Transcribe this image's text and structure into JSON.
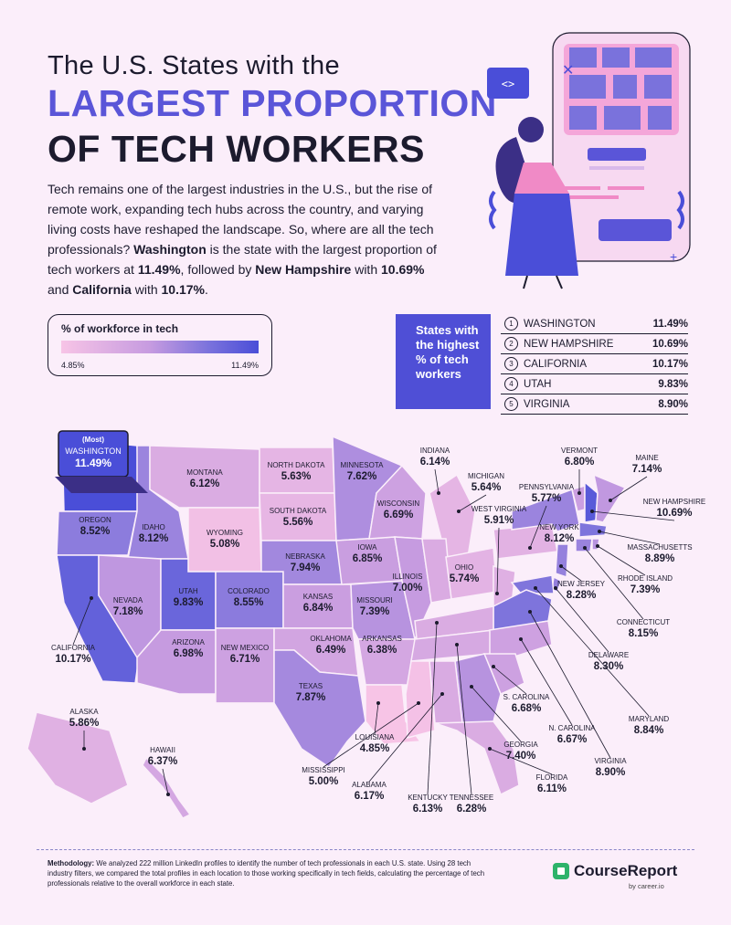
{
  "header": {
    "title_line1": "The U.S. States with the",
    "title_line2": "LARGEST PROPORTION",
    "title_line3": "OF TECH WORKERS"
  },
  "intro": {
    "p1": "Tech remains one of the largest industries in the U.S., but the rise of remote work, expanding tech hubs across the country, and varying living costs have reshaped the landscape. So, where are all the tech professionals?",
    "s1": "Washington",
    "p2": "is the state with the largest proportion of tech workers at",
    "v1": "11.49%",
    "p3": ", followed by",
    "s2": "New Hampshire",
    "p4": "with",
    "v2": "10.69%",
    "p5": "and",
    "s3": "California",
    "p6": "with",
    "v3": "10.17%",
    "p7": "."
  },
  "legend": {
    "title": "% of workforce in tech",
    "min": "4.85%",
    "max": "11.49%",
    "colors": [
      "#f7c4e6",
      "#c69be0",
      "#7a72dc",
      "#4a4ed8"
    ]
  },
  "top_states": {
    "heading": "States with the highest % of tech workers",
    "rows": [
      {
        "rank": "1",
        "state": "WASHINGTON",
        "value": "11.49%"
      },
      {
        "rank": "2",
        "state": "NEW HAMPSHIRE",
        "value": "10.69%"
      },
      {
        "rank": "3",
        "state": "CALIFORNIA",
        "value": "10.17%"
      },
      {
        "rank": "4",
        "state": "UTAH",
        "value": "9.83%"
      },
      {
        "rank": "5",
        "state": "VIRGINIA",
        "value": "8.90%"
      }
    ]
  },
  "map": {
    "callout_most": "(Most)",
    "states": [
      {
        "name": "WASHINGTON",
        "value": "11.49%"
      },
      {
        "name": "OREGON",
        "value": "8.52%"
      },
      {
        "name": "CALIFORNIA",
        "value": "10.17%"
      },
      {
        "name": "IDAHO",
        "value": "8.12%"
      },
      {
        "name": "NEVADA",
        "value": "7.18%"
      },
      {
        "name": "MONTANA",
        "value": "6.12%"
      },
      {
        "name": "WYOMING",
        "value": "5.08%"
      },
      {
        "name": "UTAH",
        "value": "9.83%"
      },
      {
        "name": "COLORADO",
        "value": "8.55%"
      },
      {
        "name": "ARIZONA",
        "value": "6.98%"
      },
      {
        "name": "NEW MEXICO",
        "value": "6.71%"
      },
      {
        "name": "NORTH DAKOTA",
        "value": "5.63%"
      },
      {
        "name": "SOUTH DAKOTA",
        "value": "5.56%"
      },
      {
        "name": "NEBRASKA",
        "value": "7.94%"
      },
      {
        "name": "KANSAS",
        "value": "6.84%"
      },
      {
        "name": "OKLAHOMA",
        "value": "6.49%"
      },
      {
        "name": "TEXAS",
        "value": "7.87%"
      },
      {
        "name": "MINNESOTA",
        "value": "7.62%"
      },
      {
        "name": "IOWA",
        "value": "6.85%"
      },
      {
        "name": "MISSOURI",
        "value": "7.39%"
      },
      {
        "name": "ARKANSAS",
        "value": "6.38%"
      },
      {
        "name": "LOUISIANA",
        "value": "4.85%"
      },
      {
        "name": "WISCONSIN",
        "value": "6.69%"
      },
      {
        "name": "ILLINOIS",
        "value": "7.00%"
      },
      {
        "name": "MICHIGAN",
        "value": "5.64%"
      },
      {
        "name": "INDIANA",
        "value": "6.14%"
      },
      {
        "name": "OHIO",
        "value": "5.74%"
      },
      {
        "name": "WEST VIRGINIA",
        "value": "5.91%"
      },
      {
        "name": "PENNSYLVANIA",
        "value": "5.77%"
      },
      {
        "name": "NEW YORK",
        "value": "8.12%"
      },
      {
        "name": "VERMONT",
        "value": "6.80%"
      },
      {
        "name": "MAINE",
        "value": "7.14%"
      },
      {
        "name": "NEW HAMPSHIRE",
        "value": "10.69%"
      },
      {
        "name": "MASSACHUSETTS",
        "value": "8.89%"
      },
      {
        "name": "RHODE ISLAND",
        "value": "7.39%"
      },
      {
        "name": "CONNECTICUT",
        "value": "8.15%"
      },
      {
        "name": "NEW JERSEY",
        "value": "8.28%"
      },
      {
        "name": "DELAWARE",
        "value": "8.30%"
      },
      {
        "name": "MARYLAND",
        "value": "8.84%"
      },
      {
        "name": "VIRGINIA",
        "value": "8.90%"
      },
      {
        "name": "N. CAROLINA",
        "value": "6.67%"
      },
      {
        "name": "S. CAROLINA",
        "value": "6.68%"
      },
      {
        "name": "GEORGIA",
        "value": "7.40%"
      },
      {
        "name": "FLORIDA",
        "value": "6.11%"
      },
      {
        "name": "ALABAMA",
        "value": "6.17%"
      },
      {
        "name": "MISSISSIPPI",
        "value": "5.00%"
      },
      {
        "name": "TENNESSEE",
        "value": "6.28%"
      },
      {
        "name": "KENTUCKY",
        "value": "6.13%"
      },
      {
        "name": "ALASKA",
        "value": "5.86%"
      },
      {
        "name": "HAWAII",
        "value": "6.37%"
      }
    ]
  },
  "methodology": {
    "label": "Methodology:",
    "text": "We analyzed 222 million LinkedIn profiles to identify the number of tech professionals in each U.S. state. Using 28 tech industry filters, we compared the total profiles in each location to those working specifically in tech fields, calculating the percentage of tech professionals relative to the overall workforce in each state."
  },
  "brand": {
    "name": "CourseReport",
    "sub": "by career.io",
    "color": "#2db36a"
  }
}
